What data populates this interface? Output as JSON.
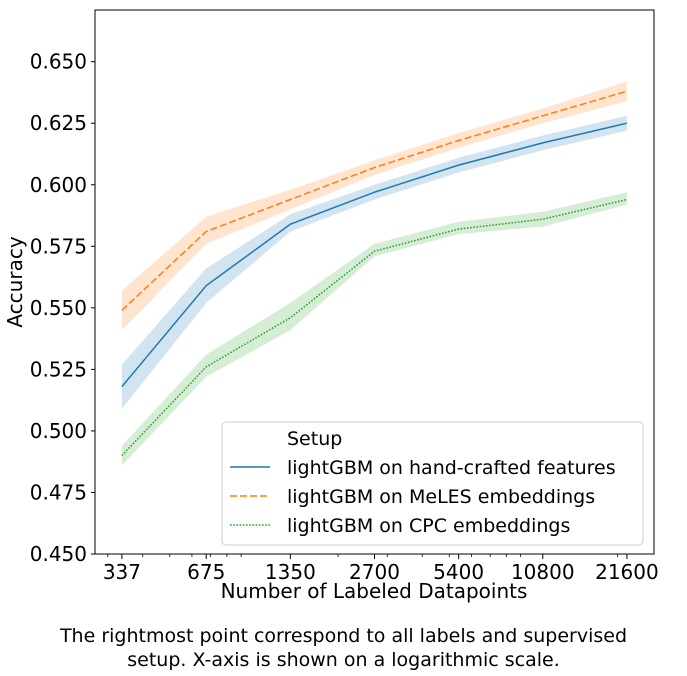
{
  "chart_data": {
    "type": "line",
    "x_scale": "log",
    "x": [
      337,
      675,
      1350,
      2700,
      5400,
      10800,
      21600
    ],
    "x_tick_labels": [
      "337",
      "675",
      "1350",
      "2700",
      "5400",
      "10800",
      "21600"
    ],
    "y_ticks": [
      0.45,
      0.475,
      0.5,
      0.525,
      0.55,
      0.575,
      0.6,
      0.625,
      0.65
    ],
    "y_tick_labels": [
      "0.450",
      "0.475",
      "0.500",
      "0.525",
      "0.550",
      "0.575",
      "0.600",
      "0.625",
      "0.650"
    ],
    "xlim": [
      270,
      27000
    ],
    "ylim": [
      0.45,
      0.671
    ],
    "xlabel": "Number of Labeled Datapoints",
    "ylabel": "Accuracy",
    "grid": false,
    "legend": {
      "title": "Setup",
      "placement": "lower-right"
    },
    "series": [
      {
        "name": "lightGBM on hand-crafted features",
        "color": "#1f77b4",
        "dash": "solid",
        "values": [
          0.518,
          0.559,
          0.584,
          0.597,
          0.608,
          0.617,
          0.625
        ],
        "lower": [
          0.509,
          0.552,
          0.581,
          0.594,
          0.605,
          0.614,
          0.622
        ],
        "upper": [
          0.527,
          0.566,
          0.588,
          0.6,
          0.611,
          0.62,
          0.628
        ]
      },
      {
        "name": "lightGBM on MeLES embeddings",
        "color": "#ff7f0e",
        "dash": "dashed",
        "values": [
          0.549,
          0.581,
          0.594,
          0.607,
          0.618,
          0.628,
          0.638
        ],
        "lower": [
          0.541,
          0.576,
          0.59,
          0.604,
          0.615,
          0.625,
          0.634
        ],
        "upper": [
          0.557,
          0.587,
          0.598,
          0.61,
          0.621,
          0.631,
          0.642
        ]
      },
      {
        "name": "lightGBM on CPC embeddings",
        "color": "#2ca02c",
        "dash": "dotted",
        "values": [
          0.49,
          0.526,
          0.546,
          0.573,
          0.582,
          0.586,
          0.594
        ],
        "lower": [
          0.486,
          0.522,
          0.541,
          0.571,
          0.58,
          0.583,
          0.592
        ],
        "upper": [
          0.494,
          0.531,
          0.552,
          0.576,
          0.585,
          0.589,
          0.597
        ]
      }
    ]
  },
  "caption": {
    "line1": "The rightmost point correspond to all labels and supervised",
    "line2": "setup. X-axis is shown on a logarithmic scale."
  }
}
